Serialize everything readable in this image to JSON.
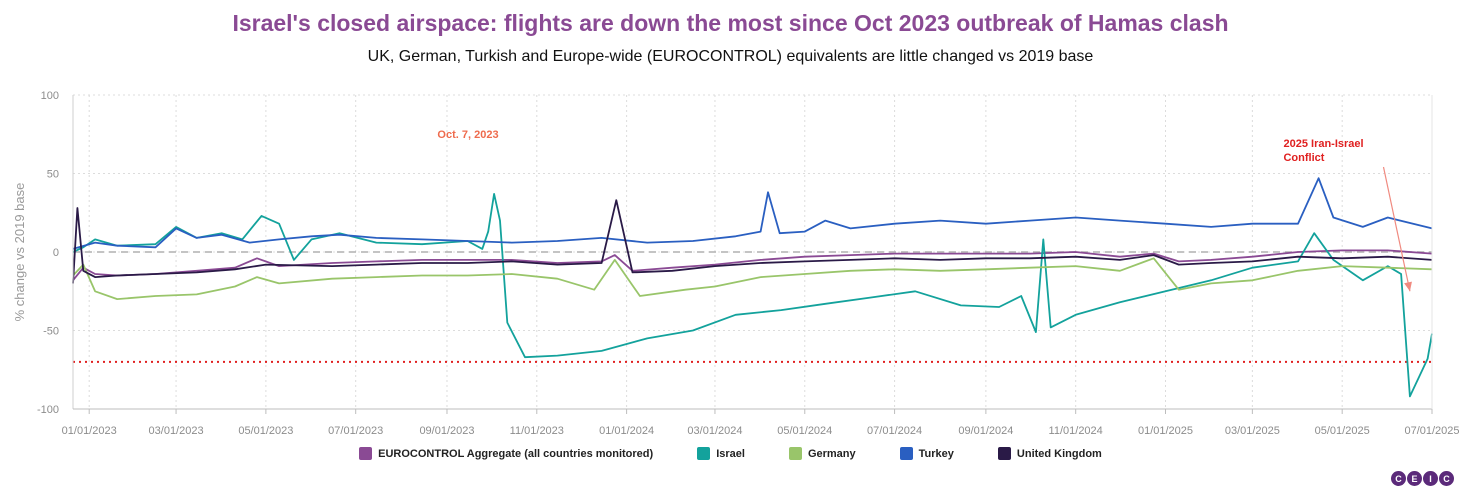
{
  "title": "Israel's closed airspace: flights are down the most since Oct 2023 outbreak of Hamas clash",
  "subtitle": "UK, German, Turkish and Europe-wide (EUROCONTROL) equivalents are little changed vs 2019 base",
  "logo": [
    "C",
    "E",
    "I",
    "C"
  ],
  "chart_data": {
    "type": "line",
    "ylabel": "% change vs 2019 base",
    "ylim": [
      -100,
      100
    ],
    "xlim": [
      "2022-12-21",
      "2025-07-01"
    ],
    "y_ticks": [
      100,
      50,
      0,
      -50,
      -100
    ],
    "x_ticks": [
      "01/01/2023",
      "03/01/2023",
      "05/01/2023",
      "07/01/2023",
      "09/01/2023",
      "11/01/2023",
      "01/01/2024",
      "03/01/2024",
      "05/01/2024",
      "07/01/2024",
      "09/01/2024",
      "11/01/2024",
      "01/01/2025",
      "03/01/2025",
      "05/01/2025",
      "07/01/2025"
    ],
    "grid": true,
    "legend_position": "bottom",
    "reference_lines": [
      {
        "y": 0,
        "style": "dashed",
        "color": "#b0b0b0"
      },
      {
        "y": -70,
        "style": "dotted",
        "color": "#e02020"
      }
    ],
    "annotations": [
      {
        "text": "Oct. 7, 2023",
        "x": "2023-10-07",
        "y": 70,
        "color": "#ee6b4d"
      },
      {
        "text_lines": [
          "2025 Iran-Israel",
          "Conflict"
        ],
        "x": "2025-06-13",
        "y": 70,
        "color": "#e02020",
        "arrow_to": {
          "x": "2025-06-16",
          "y": -25
        }
      }
    ],
    "series": [
      {
        "name": "EUROCONTROL Aggregate (all countries monitored)",
        "color": "#8a4a94",
        "points": [
          [
            "2022-12-21",
            -18
          ],
          [
            "2022-12-28",
            -10
          ],
          [
            "2023-01-05",
            -14
          ],
          [
            "2023-01-20",
            -15
          ],
          [
            "2023-02-15",
            -14
          ],
          [
            "2023-03-15",
            -12
          ],
          [
            "2023-04-10",
            -10
          ],
          [
            "2023-04-25",
            -4
          ],
          [
            "2023-05-10",
            -9
          ],
          [
            "2023-06-15",
            -7
          ],
          [
            "2023-07-15",
            -6
          ],
          [
            "2023-08-15",
            -5
          ],
          [
            "2023-09-15",
            -5
          ],
          [
            "2023-10-15",
            -5
          ],
          [
            "2023-11-15",
            -7
          ],
          [
            "2023-12-15",
            -6
          ],
          [
            "2023-12-24",
            -2
          ],
          [
            "2024-01-05",
            -12
          ],
          [
            "2024-02-01",
            -10
          ],
          [
            "2024-03-01",
            -8
          ],
          [
            "2024-04-01",
            -5
          ],
          [
            "2024-05-01",
            -3
          ],
          [
            "2024-06-01",
            -2
          ],
          [
            "2024-07-01",
            -1
          ],
          [
            "2024-08-01",
            -1
          ],
          [
            "2024-09-01",
            -1
          ],
          [
            "2024-10-01",
            -1
          ],
          [
            "2024-11-01",
            0
          ],
          [
            "2024-12-01",
            -3
          ],
          [
            "2024-12-24",
            -1
          ],
          [
            "2025-01-10",
            -6
          ],
          [
            "2025-02-01",
            -5
          ],
          [
            "2025-03-01",
            -3
          ],
          [
            "2025-04-01",
            0
          ],
          [
            "2025-05-01",
            1
          ],
          [
            "2025-06-01",
            1
          ],
          [
            "2025-07-01",
            -1
          ]
        ]
      },
      {
        "name": "Israel",
        "color": "#13a29c",
        "points": [
          [
            "2022-12-21",
            0
          ],
          [
            "2022-12-28",
            3
          ],
          [
            "2023-01-05",
            8
          ],
          [
            "2023-01-20",
            4
          ],
          [
            "2023-02-15",
            5
          ],
          [
            "2023-03-01",
            16
          ],
          [
            "2023-03-15",
            9
          ],
          [
            "2023-04-01",
            12
          ],
          [
            "2023-04-15",
            8
          ],
          [
            "2023-04-28",
            23
          ],
          [
            "2023-05-10",
            18
          ],
          [
            "2023-05-20",
            -5
          ],
          [
            "2023-06-01",
            8
          ],
          [
            "2023-06-20",
            12
          ],
          [
            "2023-07-15",
            6
          ],
          [
            "2023-08-15",
            5
          ],
          [
            "2023-09-15",
            7
          ],
          [
            "2023-09-25",
            2
          ],
          [
            "2023-09-29",
            13
          ],
          [
            "2023-10-03",
            37
          ],
          [
            "2023-10-07",
            20
          ],
          [
            "2023-10-12",
            -45
          ],
          [
            "2023-10-24",
            -67
          ],
          [
            "2023-11-15",
            -66
          ],
          [
            "2023-12-15",
            -63
          ],
          [
            "2024-01-15",
            -55
          ],
          [
            "2024-02-15",
            -50
          ],
          [
            "2024-03-15",
            -40
          ],
          [
            "2024-04-15",
            -37
          ],
          [
            "2024-05-15",
            -33
          ],
          [
            "2024-06-15",
            -29
          ],
          [
            "2024-07-15",
            -25
          ],
          [
            "2024-08-15",
            -34
          ],
          [
            "2024-09-10",
            -35
          ],
          [
            "2024-09-25",
            -28
          ],
          [
            "2024-10-05",
            -51
          ],
          [
            "2024-10-10",
            8
          ],
          [
            "2024-10-15",
            -48
          ],
          [
            "2024-11-01",
            -40
          ],
          [
            "2024-12-01",
            -32
          ],
          [
            "2025-01-01",
            -25
          ],
          [
            "2025-02-01",
            -18
          ],
          [
            "2025-03-01",
            -10
          ],
          [
            "2025-04-01",
            -6
          ],
          [
            "2025-04-12",
            12
          ],
          [
            "2025-04-25",
            -5
          ],
          [
            "2025-05-15",
            -18
          ],
          [
            "2025-06-01",
            -9
          ],
          [
            "2025-06-10",
            -14
          ],
          [
            "2025-06-16",
            -92
          ],
          [
            "2025-06-28",
            -68
          ],
          [
            "2025-07-01",
            -52
          ]
        ]
      },
      {
        "name": "Germany",
        "color": "#99c56a",
        "points": [
          [
            "2022-12-21",
            -15
          ],
          [
            "2022-12-28",
            -8
          ],
          [
            "2023-01-05",
            -25
          ],
          [
            "2023-01-20",
            -30
          ],
          [
            "2023-02-15",
            -28
          ],
          [
            "2023-03-15",
            -27
          ],
          [
            "2023-04-10",
            -22
          ],
          [
            "2023-04-25",
            -16
          ],
          [
            "2023-05-10",
            -20
          ],
          [
            "2023-06-15",
            -17
          ],
          [
            "2023-07-15",
            -16
          ],
          [
            "2023-08-15",
            -15
          ],
          [
            "2023-09-15",
            -15
          ],
          [
            "2023-10-15",
            -14
          ],
          [
            "2023-11-15",
            -17
          ],
          [
            "2023-12-10",
            -24
          ],
          [
            "2023-12-24",
            -5
          ],
          [
            "2024-01-10",
            -28
          ],
          [
            "2024-02-10",
            -24
          ],
          [
            "2024-03-01",
            -22
          ],
          [
            "2024-04-01",
            -16
          ],
          [
            "2024-05-01",
            -14
          ],
          [
            "2024-06-01",
            -12
          ],
          [
            "2024-07-01",
            -11
          ],
          [
            "2024-08-01",
            -12
          ],
          [
            "2024-09-01",
            -11
          ],
          [
            "2024-10-01",
            -10
          ],
          [
            "2024-11-01",
            -9
          ],
          [
            "2024-12-01",
            -12
          ],
          [
            "2024-12-24",
            -4
          ],
          [
            "2025-01-10",
            -24
          ],
          [
            "2025-02-01",
            -20
          ],
          [
            "2025-03-01",
            -18
          ],
          [
            "2025-04-01",
            -12
          ],
          [
            "2025-05-01",
            -9
          ],
          [
            "2025-06-01",
            -10
          ],
          [
            "2025-07-01",
            -11
          ]
        ]
      },
      {
        "name": "Turkey",
        "color": "#2a5fc1",
        "points": [
          [
            "2022-12-21",
            2
          ],
          [
            "2023-01-05",
            6
          ],
          [
            "2023-01-20",
            4
          ],
          [
            "2023-02-15",
            3
          ],
          [
            "2023-03-01",
            15
          ],
          [
            "2023-03-15",
            9
          ],
          [
            "2023-04-01",
            11
          ],
          [
            "2023-04-20",
            6
          ],
          [
            "2023-05-10",
            8
          ],
          [
            "2023-06-01",
            10
          ],
          [
            "2023-06-20",
            11
          ],
          [
            "2023-07-15",
            9
          ],
          [
            "2023-08-15",
            8
          ],
          [
            "2023-09-15",
            7
          ],
          [
            "2023-10-15",
            6
          ],
          [
            "2023-11-15",
            7
          ],
          [
            "2023-12-15",
            9
          ],
          [
            "2024-01-15",
            6
          ],
          [
            "2024-02-15",
            7
          ],
          [
            "2024-03-15",
            10
          ],
          [
            "2024-04-01",
            13
          ],
          [
            "2024-04-06",
            38
          ],
          [
            "2024-04-14",
            12
          ],
          [
            "2024-05-01",
            13
          ],
          [
            "2024-05-15",
            20
          ],
          [
            "2024-06-01",
            15
          ],
          [
            "2024-07-01",
            18
          ],
          [
            "2024-08-01",
            20
          ],
          [
            "2024-09-01",
            18
          ],
          [
            "2024-10-01",
            20
          ],
          [
            "2024-11-01",
            22
          ],
          [
            "2024-12-01",
            20
          ],
          [
            "2025-01-01",
            18
          ],
          [
            "2025-02-01",
            16
          ],
          [
            "2025-03-01",
            18
          ],
          [
            "2025-04-01",
            18
          ],
          [
            "2025-04-15",
            47
          ],
          [
            "2025-04-25",
            22
          ],
          [
            "2025-05-15",
            16
          ],
          [
            "2025-06-01",
            22
          ],
          [
            "2025-07-01",
            15
          ]
        ]
      },
      {
        "name": "United Kingdom",
        "color": "#2a1a47",
        "points": [
          [
            "2022-12-21",
            -20
          ],
          [
            "2022-12-24",
            28
          ],
          [
            "2022-12-28",
            -12
          ],
          [
            "2023-01-05",
            -16
          ],
          [
            "2023-01-20",
            -15
          ],
          [
            "2023-02-15",
            -14
          ],
          [
            "2023-03-15",
            -13
          ],
          [
            "2023-04-10",
            -11
          ],
          [
            "2023-05-01",
            -8
          ],
          [
            "2023-06-15",
            -9
          ],
          [
            "2023-07-15",
            -8
          ],
          [
            "2023-08-15",
            -7
          ],
          [
            "2023-09-15",
            -7
          ],
          [
            "2023-10-15",
            -6
          ],
          [
            "2023-11-15",
            -8
          ],
          [
            "2023-12-15",
            -7
          ],
          [
            "2023-12-25",
            33
          ],
          [
            "2024-01-05",
            -13
          ],
          [
            "2024-02-01",
            -12
          ],
          [
            "2024-03-01",
            -9
          ],
          [
            "2024-04-01",
            -7
          ],
          [
            "2024-05-01",
            -6
          ],
          [
            "2024-06-01",
            -5
          ],
          [
            "2024-07-01",
            -4
          ],
          [
            "2024-08-01",
            -5
          ],
          [
            "2024-09-01",
            -4
          ],
          [
            "2024-10-01",
            -4
          ],
          [
            "2024-11-01",
            -3
          ],
          [
            "2024-12-01",
            -5
          ],
          [
            "2024-12-24",
            -2
          ],
          [
            "2025-01-10",
            -8
          ],
          [
            "2025-02-01",
            -7
          ],
          [
            "2025-03-01",
            -6
          ],
          [
            "2025-04-01",
            -3
          ],
          [
            "2025-05-01",
            -4
          ],
          [
            "2025-06-01",
            -3
          ],
          [
            "2025-07-01",
            -5
          ]
        ]
      }
    ]
  }
}
